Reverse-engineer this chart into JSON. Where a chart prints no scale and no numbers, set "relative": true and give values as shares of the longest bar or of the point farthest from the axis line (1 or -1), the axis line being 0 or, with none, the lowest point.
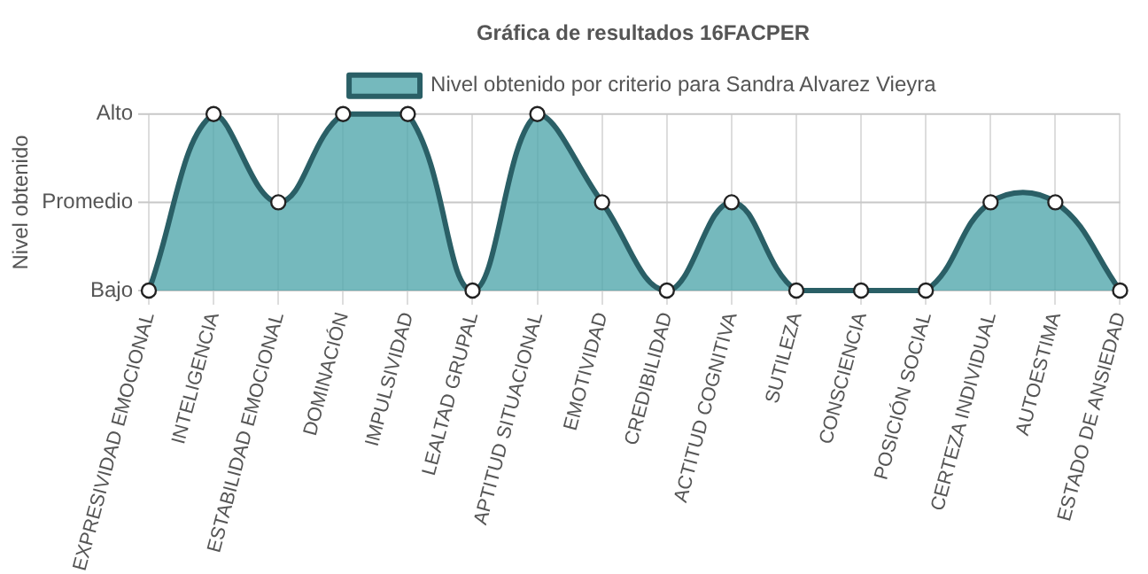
{
  "chart_data": {
    "type": "area",
    "title": "Gráfica de resultados 16FACPER",
    "ylabel": "Nivel obtenido",
    "categories": [
      "EXPRESIVIDAD EMOCIONAL",
      "INTELIGENCIA",
      "ESTABILIDAD EMOCIONAL",
      "DOMINACIÓN",
      "IMPULSIVIDAD",
      "LEALTAD GRUPAL",
      "APTITUD SITUACIONAL",
      "EMOTIVIDAD",
      "CREDIBILIDAD",
      "ACTITUD COGNITIVA",
      "SUTILEZA",
      "CONSCIENCIA",
      "POSICIÓN SOCIAL",
      "CERTEZA INDIVIDUAL",
      "AUTOESTIMA",
      "ESTADO DE ANSIEDAD"
    ],
    "series": [
      {
        "name": "Nivel obtenido por criterio para Sandra Alvarez Vieyra",
        "color": "#2a5f66",
        "values": [
          0,
          1,
          0.5,
          1,
          1,
          0,
          1,
          0.5,
          0,
          0.5,
          0,
          0,
          0,
          0.5,
          0.5,
          0
        ]
      }
    ],
    "relative": true,
    "annotations": [
      "Bajo",
      "Promedio",
      "Alto"
    ],
    "ref_lines": [
      {
        "axis": "y",
        "value": 0.5,
        "color": "#c8c8c8"
      }
    ],
    "grid": "x",
    "legend": "top",
    "marker": "circle",
    "line_style": "solid"
  }
}
